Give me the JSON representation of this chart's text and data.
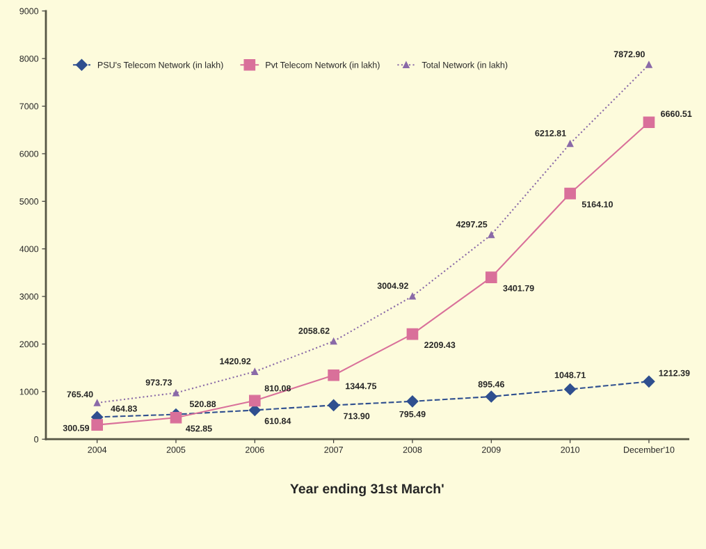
{
  "chart_data": {
    "type": "line",
    "xlabel": "Year ending 31st March'",
    "categories": [
      "2004",
      "2005",
      "2006",
      "2007",
      "2008",
      "2009",
      "2010",
      "December'10"
    ],
    "series": [
      {
        "name": "PSU's Telecom Network (in lakh)",
        "color": "#2f4f8f",
        "marker": "diamond",
        "line_style": "dashed",
        "values": [
          464.83,
          520.88,
          610.84,
          713.9,
          795.49,
          895.46,
          1048.71,
          1212.39
        ],
        "value_labels": [
          "464.83",
          "520.88",
          "610.84",
          "713.90",
          "795.49",
          "895.46",
          "1048.71",
          "1212.39"
        ]
      },
      {
        "name": "Pvt Telecom Network (in lakh)",
        "color": "#d9709a",
        "marker": "square",
        "line_style": "solid",
        "values": [
          300.59,
          452.85,
          810.08,
          1344.75,
          2209.43,
          3401.79,
          5164.1,
          6660.51
        ],
        "value_labels": [
          "300.59",
          "452.85",
          "810.08",
          "1344.75",
          "2209.43",
          "3401.79",
          "5164.10",
          "6660.51"
        ]
      },
      {
        "name": "Total Network (in lakh)",
        "color": "#8a6aa8",
        "marker": "triangle",
        "line_style": "dotted",
        "values": [
          765.4,
          973.73,
          1420.92,
          2058.62,
          3004.92,
          4297.25,
          6212.81,
          7872.9
        ],
        "value_labels": [
          "765.40",
          "973.73",
          "1420.92",
          "2058.62",
          "3004.92",
          "4297.25",
          "6212.81",
          "7872.90"
        ]
      }
    ],
    "ylim": [
      0,
      9000
    ],
    "yticks": [
      0,
      1000,
      2000,
      3000,
      4000,
      5000,
      6000,
      7000,
      8000,
      9000
    ],
    "grid": false,
    "legend": "top left"
  }
}
